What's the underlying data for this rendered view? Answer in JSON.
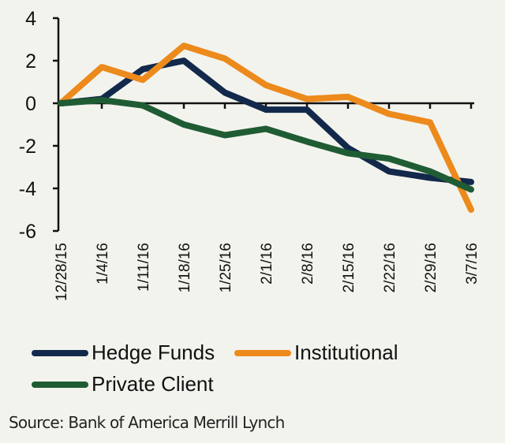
{
  "chart_data": {
    "type": "line",
    "title": "",
    "xlabel": "",
    "ylabel": "",
    "ylim": [
      -6,
      4
    ],
    "yticks": [
      4,
      2,
      0,
      -2,
      -4,
      -6
    ],
    "categories": [
      "12/28/15",
      "1/4/16",
      "1/11/16",
      "1/18/16",
      "1/25/16",
      "2/1/16",
      "2/8/16",
      "2/15/16",
      "2/22/16",
      "2/29/16",
      "3/7/16"
    ],
    "series": [
      {
        "name": "Hedge Funds",
        "color": "#13294b",
        "values": [
          0,
          0.2,
          1.6,
          2.0,
          0.5,
          -0.3,
          -0.3,
          -2.1,
          -3.2,
          -3.5,
          -3.7
        ]
      },
      {
        "name": "Institutional",
        "color": "#ec8a1c",
        "values": [
          0,
          1.7,
          1.1,
          2.7,
          2.1,
          0.85,
          0.2,
          0.3,
          -0.5,
          -0.9,
          -5.0
        ]
      },
      {
        "name": "Private Client",
        "color": "#1f5c33",
        "values": [
          0,
          0.15,
          -0.1,
          -1.0,
          -1.5,
          -1.2,
          -1.8,
          -2.35,
          -2.6,
          -3.2,
          -4.05
        ]
      }
    ],
    "grid": false,
    "legend_position": "bottom"
  },
  "source": "Source: Bank of America Merrill Lynch"
}
